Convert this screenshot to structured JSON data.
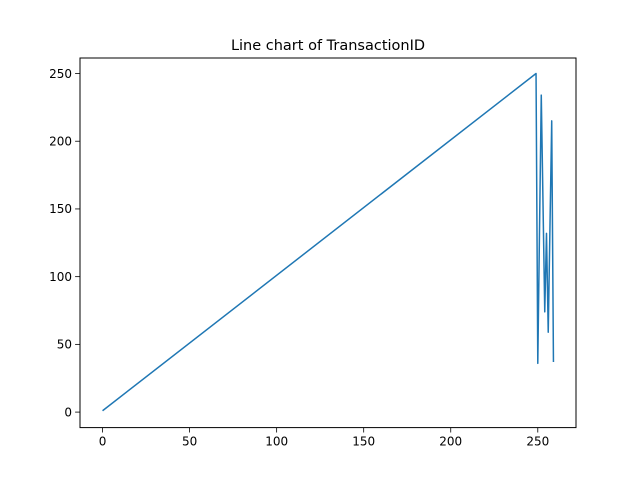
{
  "chart_data": {
    "type": "line",
    "title": "Line chart of TransactionID",
    "xlabel": "",
    "ylabel": "",
    "xlim": [
      -12.95,
      271.95
    ],
    "ylim": [
      -11.45,
      261.45
    ],
    "xticks": [
      0,
      50,
      100,
      150,
      200,
      250
    ],
    "yticks": [
      0,
      50,
      100,
      150,
      200,
      250
    ],
    "grid": false,
    "series": [
      {
        "color": "#1f77b4",
        "x": [
          0,
          249,
          250,
          252,
          254,
          255,
          256,
          258,
          259
        ],
        "y": [
          1,
          250,
          36,
          234,
          74,
          132,
          59,
          215,
          37
        ]
      }
    ]
  }
}
